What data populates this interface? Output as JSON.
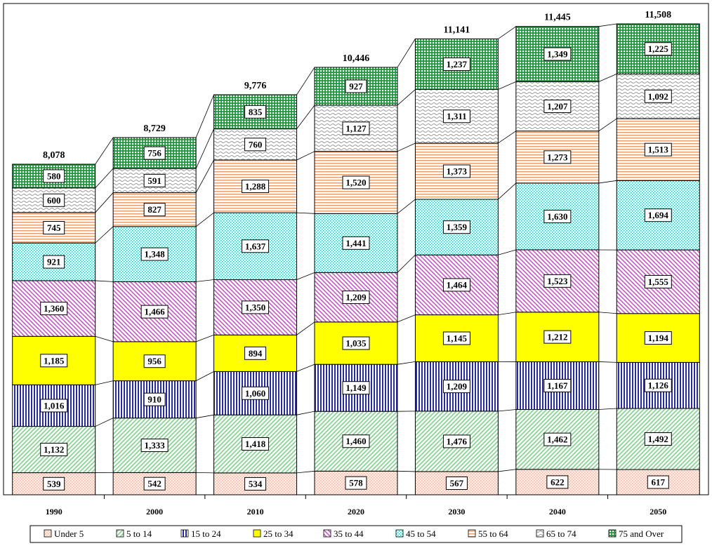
{
  "chart_data": {
    "type": "bar",
    "stacked": true,
    "categories": [
      "1990",
      "2000",
      "2010",
      "2020",
      "2030",
      "2040",
      "2050"
    ],
    "totals": [
      "8,078",
      "8,729",
      "9,776",
      "10,446",
      "11,141",
      "11,445",
      "11,508"
    ],
    "series": [
      {
        "name": "Under 5",
        "color": "#f4b8a8",
        "pattern": "dots",
        "values": [
          539,
          542,
          534,
          578,
          567,
          622,
          617
        ]
      },
      {
        "name": "5 to 14",
        "color": "#7ed08a",
        "pattern": "diag-up",
        "values": [
          1132,
          1333,
          1418,
          1460,
          1476,
          1462,
          1492
        ]
      },
      {
        "name": "15 to 24",
        "color": "#2a2aa0",
        "pattern": "vlines",
        "values": [
          1016,
          910,
          1060,
          1149,
          1209,
          1167,
          1126
        ]
      },
      {
        "name": "25 to 34",
        "color": "#ffff00",
        "pattern": "solid",
        "values": [
          1185,
          956,
          894,
          1035,
          1145,
          1212,
          1194
        ]
      },
      {
        "name": "35 to 44",
        "color": "#cc55cc",
        "pattern": "diag-down",
        "values": [
          1360,
          1466,
          1350,
          1209,
          1464,
          1523,
          1555
        ]
      },
      {
        "name": "45 to 54",
        "color": "#22cccc",
        "pattern": "dots",
        "values": [
          921,
          1348,
          1637,
          1441,
          1359,
          1630,
          1694
        ]
      },
      {
        "name": "55 to 64",
        "color": "#e8a070",
        "pattern": "hlines",
        "values": [
          745,
          827,
          1288,
          1520,
          1373,
          1273,
          1513
        ]
      },
      {
        "name": "65 to 74",
        "color": "#9a9a9a",
        "pattern": "wave",
        "values": [
          600,
          591,
          760,
          1127,
          1311,
          1207,
          1092
        ]
      },
      {
        "name": "75 and Over",
        "color": "#1a9a3a",
        "pattern": "grid",
        "values": [
          580,
          756,
          835,
          927,
          1237,
          1349,
          1225
        ]
      }
    ],
    "ylim": [
      0,
      11508
    ],
    "grid": false,
    "legend": "bottom",
    "title": "",
    "xlabel": "",
    "ylabel": ""
  }
}
